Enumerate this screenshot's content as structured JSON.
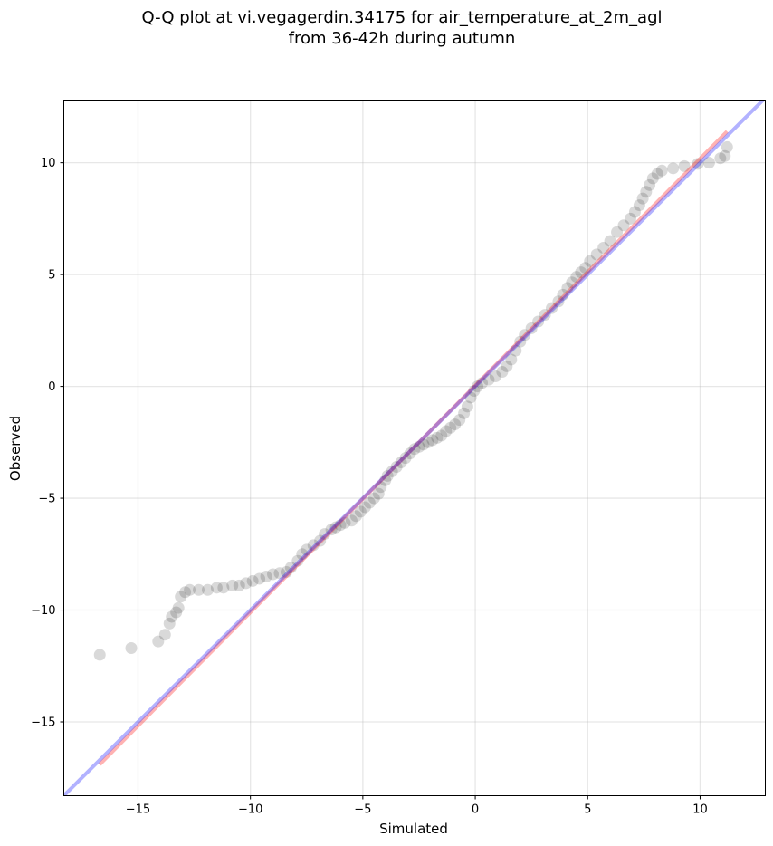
{
  "chart_data": {
    "type": "scatter",
    "title": [
      "Q-Q plot at vi.vegagerdin.34175 for air_temperature_at_2m_agl",
      "from 36-42h during autumn"
    ],
    "xlabel": "Simulated",
    "ylabel": "Observed",
    "xlim": [
      -18.3,
      12.9
    ],
    "ylim": [
      -18.3,
      12.8
    ],
    "xticks": [
      -15,
      -10,
      -5,
      0,
      5,
      10
    ],
    "yticks": [
      -15,
      -10,
      -5,
      0,
      5,
      10
    ],
    "xtick_labels": [
      "−15",
      "−10",
      "−5",
      "0",
      "5",
      "10"
    ],
    "ytick_labels": [
      "−15",
      "−10",
      "−5",
      "0",
      "5",
      "10"
    ],
    "grid": true,
    "series": [
      {
        "kind": "points",
        "color": "#000000",
        "opacity": 0.15,
        "points": [
          [
            -16.7,
            -12.0
          ],
          [
            -15.3,
            -11.7
          ],
          [
            -14.1,
            -11.4
          ],
          [
            -13.8,
            -11.1
          ],
          [
            -13.6,
            -10.6
          ],
          [
            -13.5,
            -10.3
          ],
          [
            -13.3,
            -10.1
          ],
          [
            -13.2,
            -9.9
          ],
          [
            -13.1,
            -9.4
          ],
          [
            -12.9,
            -9.2
          ],
          [
            -12.7,
            -9.1
          ],
          [
            -12.3,
            -9.1
          ],
          [
            -11.9,
            -9.1
          ],
          [
            -11.5,
            -9.0
          ],
          [
            -11.2,
            -9.0
          ],
          [
            -10.8,
            -8.9
          ],
          [
            -10.5,
            -8.9
          ],
          [
            -10.2,
            -8.8
          ],
          [
            -9.9,
            -8.7
          ],
          [
            -9.6,
            -8.6
          ],
          [
            -9.3,
            -8.5
          ],
          [
            -9.0,
            -8.4
          ],
          [
            -8.7,
            -8.35
          ],
          [
            -8.4,
            -8.3
          ],
          [
            -8.2,
            -8.1
          ],
          [
            -7.9,
            -7.8
          ],
          [
            -7.7,
            -7.5
          ],
          [
            -7.5,
            -7.3
          ],
          [
            -7.2,
            -7.1
          ],
          [
            -6.9,
            -6.9
          ],
          [
            -6.7,
            -6.6
          ],
          [
            -6.4,
            -6.4
          ],
          [
            -6.2,
            -6.3
          ],
          [
            -6.0,
            -6.2
          ],
          [
            -5.8,
            -6.1
          ],
          [
            -5.5,
            -6.0
          ],
          [
            -5.3,
            -5.8
          ],
          [
            -5.1,
            -5.6
          ],
          [
            -4.9,
            -5.4
          ],
          [
            -4.7,
            -5.2
          ],
          [
            -4.5,
            -5.0
          ],
          [
            -4.3,
            -4.8
          ],
          [
            -4.2,
            -4.5
          ],
          [
            -4.0,
            -4.2
          ],
          [
            -3.9,
            -4.0
          ],
          [
            -3.7,
            -3.8
          ],
          [
            -3.5,
            -3.6
          ],
          [
            -3.3,
            -3.4
          ],
          [
            -3.1,
            -3.2
          ],
          [
            -2.9,
            -3.0
          ],
          [
            -2.7,
            -2.8
          ],
          [
            -2.5,
            -2.7
          ],
          [
            -2.3,
            -2.6
          ],
          [
            -2.1,
            -2.5
          ],
          [
            -1.9,
            -2.4
          ],
          [
            -1.7,
            -2.3
          ],
          [
            -1.5,
            -2.2
          ],
          [
            -1.3,
            -2.0
          ],
          [
            -1.1,
            -1.85
          ],
          [
            -0.9,
            -1.7
          ],
          [
            -0.7,
            -1.5
          ],
          [
            -0.5,
            -1.2
          ],
          [
            -0.35,
            -0.9
          ],
          [
            -0.2,
            -0.5
          ],
          [
            -0.05,
            -0.2
          ],
          [
            0.1,
            0.0
          ],
          [
            0.3,
            0.15
          ],
          [
            0.6,
            0.3
          ],
          [
            0.9,
            0.45
          ],
          [
            1.2,
            0.65
          ],
          [
            1.4,
            0.9
          ],
          [
            1.6,
            1.2
          ],
          [
            1.8,
            1.6
          ],
          [
            2.0,
            2.0
          ],
          [
            2.2,
            2.3
          ],
          [
            2.5,
            2.6
          ],
          [
            2.8,
            2.9
          ],
          [
            3.1,
            3.2
          ],
          [
            3.4,
            3.5
          ],
          [
            3.7,
            3.8
          ],
          [
            3.9,
            4.1
          ],
          [
            4.1,
            4.4
          ],
          [
            4.3,
            4.65
          ],
          [
            4.5,
            4.9
          ],
          [
            4.7,
            5.1
          ],
          [
            4.9,
            5.3
          ],
          [
            5.1,
            5.6
          ],
          [
            5.4,
            5.9
          ],
          [
            5.7,
            6.2
          ],
          [
            6.0,
            6.5
          ],
          [
            6.3,
            6.9
          ],
          [
            6.6,
            7.2
          ],
          [
            6.9,
            7.5
          ],
          [
            7.1,
            7.8
          ],
          [
            7.3,
            8.1
          ],
          [
            7.45,
            8.4
          ],
          [
            7.6,
            8.7
          ],
          [
            7.75,
            9.0
          ],
          [
            7.9,
            9.3
          ],
          [
            8.1,
            9.5
          ],
          [
            8.3,
            9.65
          ],
          [
            8.8,
            9.75
          ],
          [
            9.3,
            9.85
          ],
          [
            9.9,
            9.95
          ],
          [
            10.4,
            10.0
          ],
          [
            10.9,
            10.2
          ],
          [
            11.1,
            10.3
          ],
          [
            11.2,
            10.7
          ]
        ]
      },
      {
        "kind": "line",
        "name": "",
        "color": "#ff0000",
        "opacity": 0.3,
        "points": [
          [
            -16.7,
            -16.9
          ],
          [
            11.2,
            11.4
          ]
        ]
      },
      {
        "kind": "line",
        "name": "",
        "color": "#0000ff",
        "opacity": 0.3,
        "points": [
          [
            -18.3,
            -18.3
          ],
          [
            12.9,
            12.9
          ]
        ]
      }
    ]
  }
}
